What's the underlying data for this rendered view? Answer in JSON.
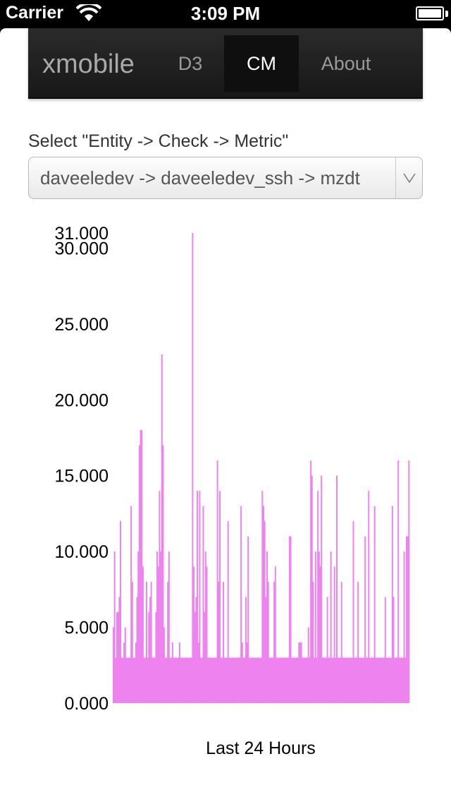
{
  "status_bar": {
    "carrier": "Carrier",
    "time": "3:09 PM",
    "icons": [
      "wifi-icon",
      "battery-icon"
    ]
  },
  "navbar": {
    "brand": "xmobile",
    "tabs": [
      {
        "label": "D3",
        "active": false
      },
      {
        "label": "CM",
        "active": true
      },
      {
        "label": "About",
        "active": false
      }
    ]
  },
  "selector": {
    "label": "Select \"Entity -> Check -> Metric\"",
    "value": "daveeledev -> daveeledev_ssh -> mzdt",
    "arrow_icon": "chevron-down-icon"
  },
  "chart_data": {
    "type": "bar",
    "color": "#ee82ee",
    "xlabel": "Last 24 Hours",
    "ylabel": "",
    "ylim": [
      0,
      31
    ],
    "yticks": [
      "0.000",
      "5.000",
      "10.000",
      "15.000",
      "20.000",
      "25.000",
      "30.000",
      "31.000"
    ],
    "values": [
      5,
      10,
      3,
      6,
      6,
      7,
      12,
      3,
      3,
      4,
      5,
      3,
      3,
      3,
      3,
      13,
      8,
      3,
      3,
      4,
      7,
      10,
      17,
      18,
      18,
      9,
      3,
      3,
      8,
      3,
      6,
      7,
      8,
      3,
      3,
      3,
      6,
      10,
      9,
      14,
      10,
      23,
      17,
      5,
      3,
      3,
      8,
      10,
      3,
      3,
      4,
      3,
      3,
      3,
      3,
      3,
      4,
      3,
      3,
      3,
      3,
      3,
      3,
      3,
      3,
      3,
      3,
      31,
      9,
      6,
      7,
      14,
      4,
      14,
      3,
      3,
      13,
      6,
      10,
      9,
      3,
      3,
      3,
      3,
      3,
      3,
      3,
      3,
      16,
      8,
      14,
      3,
      3,
      8,
      3,
      3,
      3,
      12,
      3,
      3,
      3,
      3,
      3,
      3,
      3,
      3,
      3,
      3,
      13,
      4,
      3,
      3,
      7,
      4,
      11,
      3,
      3,
      3,
      3,
      3,
      3,
      3,
      3,
      3,
      3,
      3,
      14,
      13,
      12,
      7,
      10,
      8,
      3,
      3,
      3,
      3,
      8,
      9,
      3,
      3,
      3,
      3,
      3,
      3,
      3,
      3,
      3,
      3,
      3,
      11,
      11,
      3,
      3,
      3,
      3,
      3,
      3,
      4,
      4,
      4,
      3,
      3,
      3,
      3,
      3,
      5,
      3,
      16,
      15,
      8,
      3,
      10,
      3,
      14,
      10,
      9,
      15,
      3,
      3,
      3,
      3,
      7,
      3,
      3,
      10,
      3,
      3,
      9,
      3,
      15,
      3,
      3,
      3,
      8,
      3,
      3,
      3,
      3,
      3,
      3,
      3,
      3,
      3,
      12,
      3,
      3,
      3,
      8,
      3,
      3,
      3,
      3,
      3,
      11,
      3,
      3,
      14,
      3,
      3,
      3,
      3,
      13,
      3,
      3,
      3,
      3,
      3,
      3,
      3,
      3,
      7,
      3,
      3,
      3,
      3,
      3,
      13,
      7,
      3,
      3,
      3,
      16,
      3,
      3,
      3,
      3,
      10,
      3,
      11,
      11,
      16
    ]
  }
}
